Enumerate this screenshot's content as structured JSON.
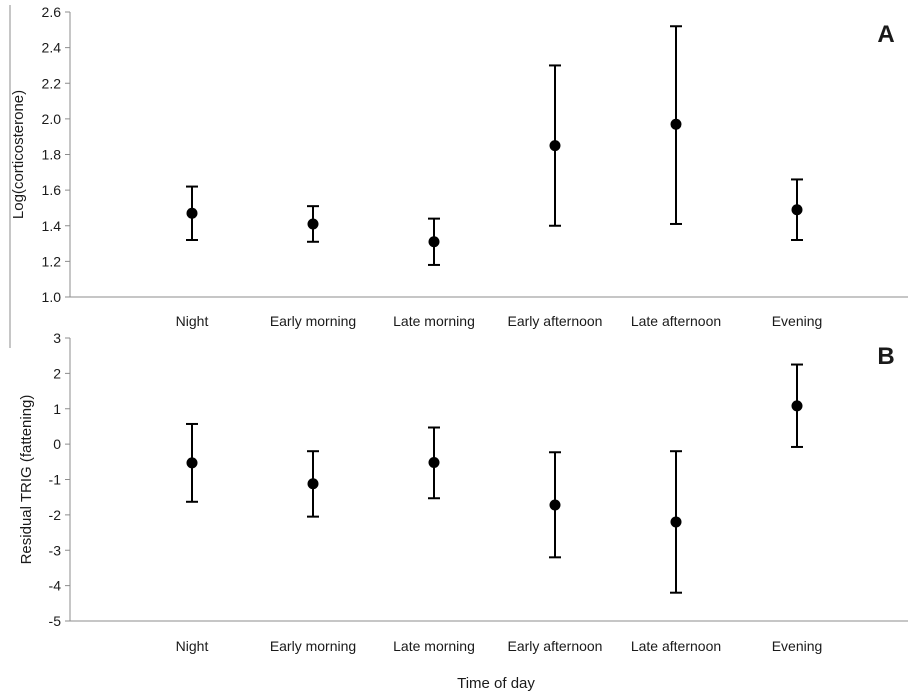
{
  "chart_data": [
    {
      "panel": "A",
      "type": "scatter",
      "ylabel": "Log(corticosterone)",
      "ylim": [
        1.0,
        2.6
      ],
      "yticks": [
        "1.0",
        "1.2",
        "1.4",
        "1.6",
        "1.8",
        "2.0",
        "2.2",
        "2.4",
        "2.6"
      ],
      "categories": [
        "Night",
        "Early morning",
        "Late morning",
        "Early afternoon",
        "Late afternoon",
        "Evening"
      ],
      "values": [
        1.47,
        1.41,
        1.31,
        1.85,
        1.97,
        1.49
      ],
      "error_low": [
        1.32,
        1.31,
        1.18,
        1.4,
        1.41,
        1.32
      ],
      "error_high": [
        1.62,
        1.51,
        1.44,
        2.3,
        2.52,
        1.66
      ],
      "grid": false
    },
    {
      "panel": "B",
      "type": "scatter",
      "ylabel": "Residual TRIG (fattening)",
      "ylim": [
        -5,
        3
      ],
      "yticks": [
        "-5",
        "-4",
        "-3",
        "-2",
        "-1",
        "0",
        "1",
        "2",
        "3"
      ],
      "categories": [
        "Night",
        "Early morning",
        "Late morning",
        "Early afternoon",
        "Late afternoon",
        "Evening"
      ],
      "values": [
        -0.53,
        -1.12,
        -0.52,
        -1.72,
        -2.2,
        1.08
      ],
      "error_low": [
        -1.63,
        -2.05,
        -1.53,
        -3.2,
        -4.2,
        -0.08
      ],
      "error_high": [
        0.57,
        -0.2,
        0.47,
        -0.23,
        -0.2,
        2.25
      ],
      "xlabel": "Time of day",
      "grid": false
    }
  ],
  "styles": {
    "ink": "#000000",
    "axis": "#8c8c8c"
  }
}
